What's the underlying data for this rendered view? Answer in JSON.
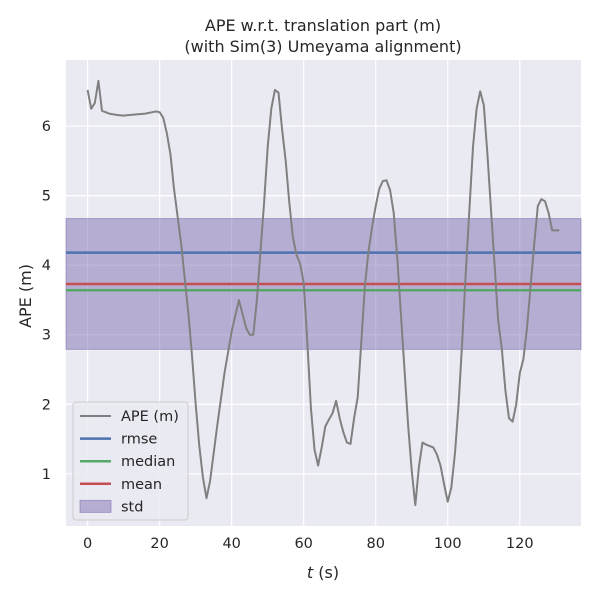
{
  "chart_data": {
    "type": "line",
    "title_line1": "APE w.r.t. translation part (m)",
    "title_line2": "(with Sim(3) Umeyama alignment)",
    "xlabel_var": "t",
    "xlabel_unit": " (s)",
    "ylabel": "APE (m)",
    "xlim": [
      -6,
      137
    ],
    "ylim": [
      0.25,
      6.95
    ],
    "xticks": [
      0,
      20,
      40,
      60,
      80,
      100,
      120
    ],
    "yticks": [
      1,
      2,
      3,
      4,
      5,
      6
    ],
    "grid": true,
    "legend_position": "lower-left",
    "series": [
      {
        "name": "APE (m)",
        "color": "#808080",
        "x": [
          0,
          1,
          2,
          3,
          4,
          6,
          8,
          10,
          12,
          14,
          16,
          18,
          19,
          20,
          21,
          22,
          23,
          24,
          26,
          28,
          29,
          30,
          31,
          32,
          33,
          34,
          36,
          38,
          40,
          42,
          44,
          45,
          46,
          47,
          48,
          49,
          50,
          51,
          52,
          53,
          54,
          55,
          56,
          57,
          58,
          59,
          60,
          61,
          62,
          63,
          64,
          65,
          66,
          67,
          68,
          69,
          70,
          71,
          72,
          73,
          74,
          75,
          76,
          77,
          78,
          79,
          80,
          81,
          82,
          83,
          84,
          85,
          86,
          87,
          88,
          89,
          90,
          91,
          92,
          93,
          94,
          96,
          97,
          98,
          99,
          100,
          101,
          102,
          103,
          104,
          105,
          106,
          107,
          108,
          109,
          110,
          111,
          112,
          113,
          114,
          115,
          116,
          117,
          118,
          119,
          120,
          121,
          122,
          123,
          124,
          125,
          126,
          127,
          128,
          129,
          130,
          131
        ],
        "values": [
          6.52,
          6.25,
          6.33,
          6.65,
          6.22,
          6.18,
          6.16,
          6.15,
          6.16,
          6.17,
          6.18,
          6.2,
          6.21,
          6.2,
          6.12,
          5.9,
          5.6,
          5.1,
          4.3,
          3.3,
          2.7,
          2.0,
          1.4,
          0.95,
          0.65,
          0.9,
          1.7,
          2.45,
          3.05,
          3.5,
          3.1,
          3.0,
          3.0,
          3.5,
          4.2,
          4.9,
          5.7,
          6.25,
          6.52,
          6.48,
          5.95,
          5.5,
          4.9,
          4.4,
          4.15,
          4.02,
          3.75,
          2.9,
          1.95,
          1.35,
          1.12,
          1.38,
          1.68,
          1.78,
          1.87,
          2.05,
          1.8,
          1.6,
          1.45,
          1.43,
          1.8,
          2.1,
          2.9,
          3.7,
          4.2,
          4.55,
          4.85,
          5.1,
          5.21,
          5.22,
          5.08,
          4.75,
          4.1,
          3.3,
          2.5,
          1.7,
          1.05,
          0.55,
          1.1,
          1.45,
          1.42,
          1.38,
          1.28,
          1.12,
          0.85,
          0.6,
          0.8,
          1.3,
          2.0,
          2.9,
          3.9,
          4.8,
          5.7,
          6.25,
          6.5,
          6.3,
          5.6,
          4.8,
          4.0,
          3.2,
          2.8,
          2.2,
          1.8,
          1.75,
          2.0,
          2.45,
          2.65,
          3.1,
          3.7,
          4.3,
          4.85,
          4.95,
          4.92,
          4.75,
          4.5,
          4.5,
          4.5
        ]
      },
      {
        "name": "rmse",
        "color": "#4c72b0",
        "y": 4.18
      },
      {
        "name": "median",
        "color": "#55a868",
        "y": 3.64
      },
      {
        "name": "mean",
        "color": "#c44e52",
        "y": 3.73
      },
      {
        "name": "std",
        "color": "#8172b2",
        "y_low": 2.79,
        "y_high": 4.67,
        "opacity": 0.5
      }
    ],
    "colors": {
      "plot_background": "#eaeaf2",
      "grid": "#ffffff",
      "text": "#262626"
    }
  }
}
